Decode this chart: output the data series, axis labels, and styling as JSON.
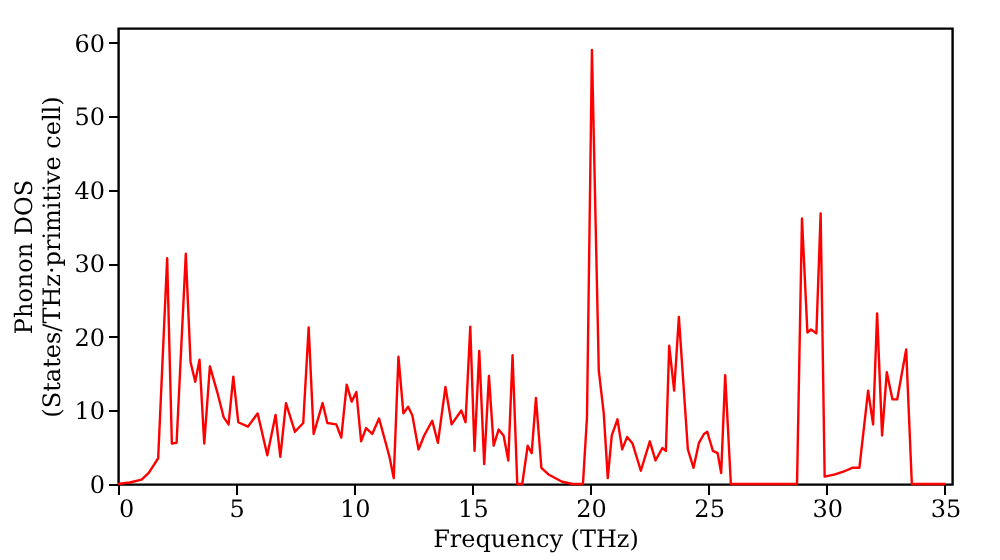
{
  "chart_data": {
    "type": "line",
    "xlabel": "Frequency (THz)",
    "ylabel": "Phonon DOS\n(States/THz·primitive cell)",
    "xlim": [
      0,
      35.3
    ],
    "xticks": [
      0,
      5,
      10,
      15,
      20,
      25,
      30,
      35
    ],
    "ylim": [
      0,
      62
    ],
    "yticks": [
      0,
      10,
      20,
      30,
      40,
      50,
      60
    ],
    "grid": false,
    "series": [
      {
        "color": "#ff0000",
        "x": [
          0,
          0.5,
          1.0,
          1.3,
          1.5,
          1.7,
          2.08,
          2.28,
          2.48,
          2.87,
          3.07,
          3.27,
          3.45,
          3.65,
          3.89,
          4.2,
          4.47,
          4.68,
          4.88,
          5.09,
          5.5,
          5.91,
          6.32,
          6.67,
          6.87,
          7.11,
          7.49,
          7.84,
          8.07,
          8.28,
          8.66,
          8.86,
          9.24,
          9.45,
          9.68,
          9.89,
          10.09,
          10.29,
          10.5,
          10.76,
          11.05,
          11.49,
          11.67,
          11.87,
          12.08,
          12.28,
          12.46,
          12.72,
          12.96,
          13.3,
          13.54,
          13.86,
          14.12,
          14.53,
          14.71,
          14.91,
          15.09,
          15.29,
          15.5,
          15.7,
          15.9,
          16.11,
          16.32,
          16.52,
          16.7,
          16.9,
          17.11,
          17.34,
          17.51,
          17.69,
          17.92,
          18.22,
          18.8,
          19.24,
          19.68,
          19.85,
          20.06,
          20.35,
          20.56,
          20.73,
          20.9,
          21.14,
          21.34,
          21.55,
          21.78,
          22.13,
          22.51,
          22.75,
          23.04,
          23.19,
          23.33,
          23.54,
          23.74,
          24.12,
          24.36,
          24.59,
          24.8,
          24.94,
          25.18,
          25.38,
          25.53,
          25.7,
          25.94,
          28.74,
          28.95,
          29.18,
          29.33,
          29.56,
          29.74,
          29.91,
          30.35,
          30.79,
          31.08,
          31.38,
          31.75,
          31.96,
          32.13,
          32.34,
          32.54,
          32.78,
          32.98,
          33.36,
          33.6,
          35.03
        ],
        "values": [
          0,
          0.2,
          0.6,
          1.5,
          2.5,
          3.5,
          30.7,
          5.5,
          5.6,
          31.3,
          16.6,
          13.9,
          16.9,
          5.5,
          16.0,
          12.5,
          9.1,
          8.1,
          14.6,
          8.4,
          7.8,
          9.6,
          3.9,
          9.4,
          3.7,
          11.0,
          7.1,
          8.3,
          21.3,
          6.8,
          11.0,
          8.3,
          8.1,
          6.3,
          13.5,
          11.2,
          12.5,
          5.8,
          7.6,
          6.8,
          8.9,
          3.7,
          0.8,
          17.3,
          9.6,
          10.5,
          9.3,
          4.7,
          6.6,
          8.6,
          5.6,
          13.2,
          8.1,
          10.0,
          8.4,
          21.4,
          4.5,
          18.1,
          2.7,
          14.7,
          5.2,
          7.4,
          6.6,
          3.2,
          17.5,
          0,
          0,
          5.2,
          4.2,
          11.7,
          2.2,
          1.3,
          0.3,
          0,
          0,
          9.1,
          59.0,
          15.4,
          9.6,
          0.8,
          6.6,
          8.8,
          4.7,
          6.4,
          5.5,
          1.8,
          5.8,
          3.2,
          4.9,
          4.5,
          18.8,
          12.7,
          22.7,
          4.7,
          2.2,
          5.6,
          6.8,
          7.1,
          4.5,
          4.2,
          1.5,
          14.8,
          0,
          0,
          36.1,
          20.6,
          21.0,
          20.5,
          36.8,
          1.0,
          1.3,
          1.8,
          2.2,
          2.2,
          12.7,
          8.1,
          23.2,
          6.6,
          15.2,
          11.5,
          11.5,
          18.3,
          0,
          0
        ]
      }
    ]
  }
}
